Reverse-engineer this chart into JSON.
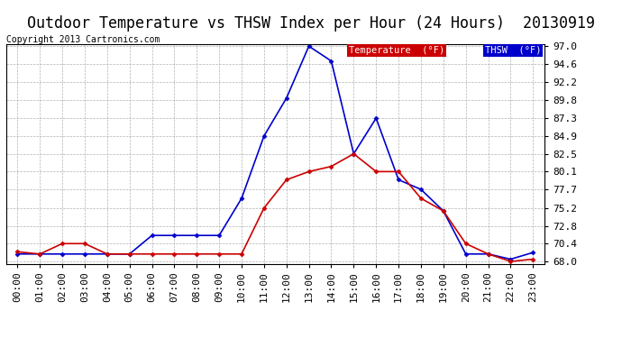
{
  "title": "Outdoor Temperature vs THSW Index per Hour (24 Hours)  20130919",
  "copyright": "Copyright 2013 Cartronics.com",
  "x_labels": [
    "00:00",
    "01:00",
    "02:00",
    "03:00",
    "04:00",
    "05:00",
    "06:00",
    "07:00",
    "08:00",
    "09:00",
    "10:00",
    "11:00",
    "12:00",
    "13:00",
    "14:00",
    "15:00",
    "16:00",
    "17:00",
    "18:00",
    "19:00",
    "20:00",
    "21:00",
    "22:00",
    "23:00"
  ],
  "thsw": [
    69.0,
    69.0,
    69.0,
    69.0,
    69.0,
    69.0,
    71.5,
    71.5,
    71.5,
    71.5,
    76.5,
    84.9,
    90.0,
    97.0,
    95.0,
    82.5,
    87.3,
    79.0,
    77.7,
    74.8,
    69.0,
    69.0,
    68.3,
    69.2
  ],
  "temperature": [
    69.3,
    69.0,
    70.4,
    70.4,
    69.0,
    69.0,
    69.0,
    69.0,
    69.0,
    69.0,
    69.0,
    75.2,
    79.0,
    80.1,
    80.8,
    82.5,
    80.1,
    80.1,
    76.5,
    74.8,
    70.4,
    69.0,
    68.0,
    68.3
  ],
  "thsw_color": "#0000cc",
  "temp_color": "#cc0000",
  "background_color": "#ffffff",
  "grid_color": "#aaaaaa",
  "ylim_min": 68.0,
  "ylim_max": 97.0,
  "yticks": [
    68.0,
    70.4,
    72.8,
    75.2,
    77.7,
    80.1,
    82.5,
    84.9,
    87.3,
    89.8,
    92.2,
    94.6,
    97.0
  ],
  "legend_thsw_label": "THSW  (°F)",
  "legend_temp_label": "Temperature  (°F)",
  "legend_thsw_bg": "#0000cc",
  "legend_temp_bg": "#cc0000",
  "title_fontsize": 12,
  "copyright_fontsize": 7,
  "tick_fontsize": 8
}
